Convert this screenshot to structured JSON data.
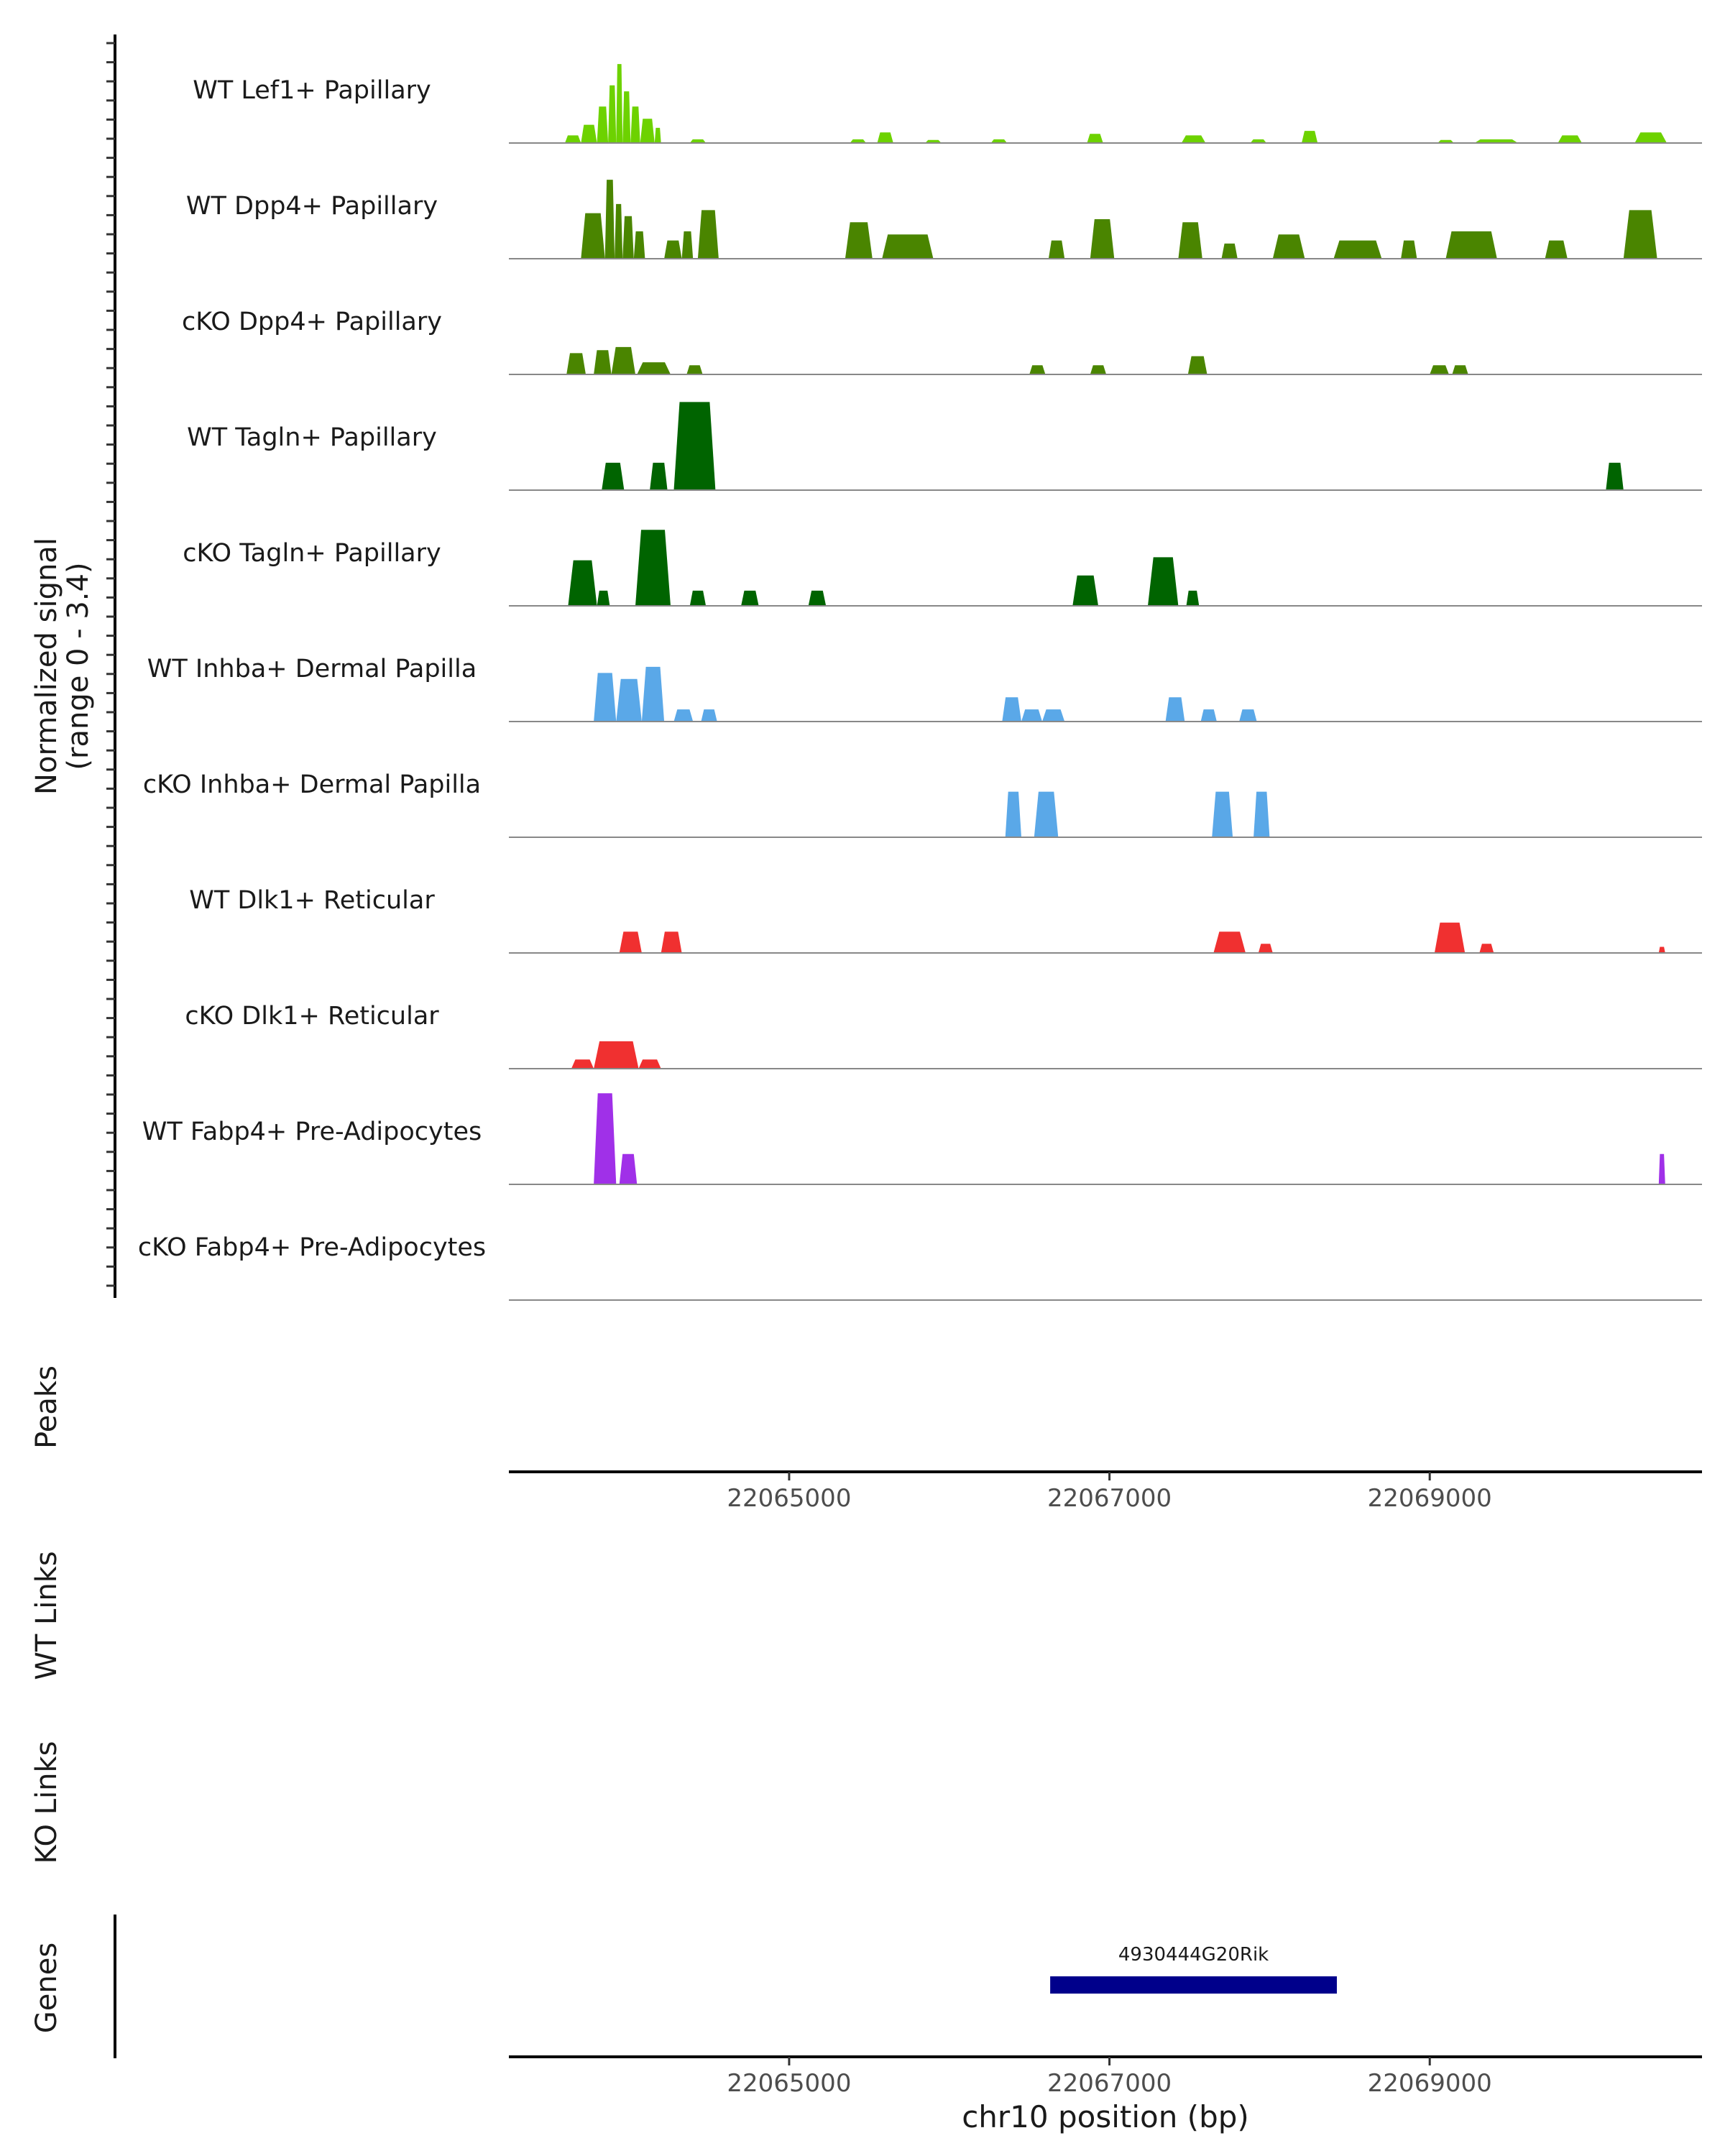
{
  "chart_data": {
    "type": "area",
    "title": "",
    "y_axis_label_line1": "Normalized signal",
    "y_axis_label_line2": "(range 0 - 3.4)",
    "ylim": [
      0,
      3.4
    ],
    "xlim": [
      22063250,
      22070700
    ],
    "x_ticks": [
      22065000,
      22067000,
      22069000
    ],
    "x_tick_labels": [
      "22065000",
      "22067000",
      "22069000"
    ],
    "xlabel": "chr10 position (bp)",
    "tracks": [
      {
        "name": "WT Lef1+ Papillary",
        "color": "#6DD200",
        "peaks": [
          [
            22063600,
            22063700,
            0.25
          ],
          [
            22063700,
            22063800,
            0.6
          ],
          [
            22063800,
            22063870,
            1.2
          ],
          [
            22063870,
            22063920,
            1.9
          ],
          [
            22063920,
            22063960,
            2.6
          ],
          [
            22063960,
            22064010,
            1.7
          ],
          [
            22064010,
            22064070,
            1.2
          ],
          [
            22064070,
            22064160,
            0.8
          ],
          [
            22064160,
            22064200,
            0.5
          ],
          [
            22064380,
            22064480,
            0.12
          ],
          [
            22065380,
            22065480,
            0.12
          ],
          [
            22065550,
            22065650,
            0.35
          ],
          [
            22065850,
            22065950,
            0.1
          ],
          [
            22066260,
            22066360,
            0.12
          ],
          [
            22066860,
            22066960,
            0.3
          ],
          [
            22067450,
            22067600,
            0.25
          ],
          [
            22067880,
            22067980,
            0.12
          ],
          [
            22068200,
            22068300,
            0.4
          ],
          [
            22069050,
            22069150,
            0.1
          ],
          [
            22069280,
            22069550,
            0.12
          ],
          [
            22069800,
            22069950,
            0.25
          ],
          [
            22070280,
            22070480,
            0.35
          ]
        ]
      },
      {
        "name": "WT Dpp4+ Papillary",
        "color": "#4A8500",
        "peaks": [
          [
            22063700,
            22063850,
            1.5
          ],
          [
            22063850,
            22063910,
            2.6
          ],
          [
            22063910,
            22063960,
            1.8
          ],
          [
            22063960,
            22064030,
            1.4
          ],
          [
            22064030,
            22064100,
            0.9
          ],
          [
            22064220,
            22064330,
            0.6
          ],
          [
            22064330,
            22064400,
            0.9
          ],
          [
            22064430,
            22064560,
            1.6
          ],
          [
            22065350,
            22065520,
            1.2
          ],
          [
            22065580,
            22065900,
            0.8
          ],
          [
            22066620,
            22066720,
            0.6
          ],
          [
            22066880,
            22067030,
            1.3
          ],
          [
            22067430,
            22067580,
            1.2
          ],
          [
            22067700,
            22067800,
            0.5
          ],
          [
            22068020,
            22068220,
            0.8
          ],
          [
            22068400,
            22068700,
            0.6
          ],
          [
            22068820,
            22068920,
            0.6
          ],
          [
            22069100,
            22069420,
            0.9
          ],
          [
            22069720,
            22069860,
            0.6
          ],
          [
            22070210,
            22070420,
            1.6
          ]
        ]
      },
      {
        "name": "cKO Dpp4+ Papillary",
        "color": "#4A8500",
        "peaks": [
          [
            22063610,
            22063730,
            0.7
          ],
          [
            22063780,
            22063890,
            0.8
          ],
          [
            22063890,
            22064040,
            0.9
          ],
          [
            22064050,
            22064260,
            0.4
          ],
          [
            22064360,
            22064460,
            0.3
          ],
          [
            22066500,
            22066600,
            0.3
          ],
          [
            22066880,
            22066980,
            0.3
          ],
          [
            22067490,
            22067610,
            0.6
          ],
          [
            22069000,
            22069120,
            0.3
          ],
          [
            22069140,
            22069240,
            0.3
          ]
        ]
      },
      {
        "name": "WT Tagln+ Papillary",
        "color": "#006400",
        "peaks": [
          [
            22063830,
            22063970,
            0.9
          ],
          [
            22064130,
            22064240,
            0.9
          ],
          [
            22064280,
            22064540,
            2.9
          ],
          [
            22070100,
            22070210,
            0.9
          ]
        ]
      },
      {
        "name": "cKO Tagln+ Papillary",
        "color": "#006400",
        "peaks": [
          [
            22063620,
            22063800,
            1.5
          ],
          [
            22063800,
            22063880,
            0.5
          ],
          [
            22064040,
            22064260,
            2.5
          ],
          [
            22064380,
            22064480,
            0.5
          ],
          [
            22064700,
            22064810,
            0.5
          ],
          [
            22065120,
            22065230,
            0.5
          ],
          [
            22066770,
            22066930,
            1.0
          ],
          [
            22067240,
            22067430,
            1.6
          ],
          [
            22067480,
            22067560,
            0.5
          ]
        ]
      },
      {
        "name": "WT Inhba+ Dermal Papilla",
        "color": "#5AA8E8",
        "peaks": [
          [
            22063780,
            22063920,
            1.6
          ],
          [
            22063920,
            22064080,
            1.4
          ],
          [
            22064080,
            22064220,
            1.8
          ],
          [
            22064280,
            22064400,
            0.4
          ],
          [
            22064450,
            22064550,
            0.4
          ],
          [
            22066330,
            22066450,
            0.8
          ],
          [
            22066450,
            22066580,
            0.4
          ],
          [
            22066580,
            22066720,
            0.4
          ],
          [
            22067350,
            22067470,
            0.8
          ],
          [
            22067570,
            22067670,
            0.4
          ],
          [
            22067810,
            22067920,
            0.4
          ]
        ]
      },
      {
        "name": "cKO Inhba+ Dermal Papilla",
        "color": "#5AA8E8",
        "peaks": [
          [
            22066350,
            22066450,
            1.5
          ],
          [
            22066530,
            22066680,
            1.5
          ],
          [
            22067640,
            22067770,
            1.5
          ],
          [
            22067900,
            22068000,
            1.5
          ]
        ]
      },
      {
        "name": "WT Dlk1+ Reticular",
        "color": "#F03030",
        "peaks": [
          [
            22063940,
            22064080,
            0.7
          ],
          [
            22064200,
            22064330,
            0.7
          ],
          [
            22067650,
            22067850,
            0.7
          ],
          [
            22067930,
            22068020,
            0.3
          ],
          [
            22069030,
            22069220,
            1.0
          ],
          [
            22069310,
            22069400,
            0.3
          ],
          [
            22070430,
            22070470,
            0.2
          ]
        ]
      },
      {
        "name": "cKO Dlk1+ Reticular",
        "color": "#F03030",
        "peaks": [
          [
            22063640,
            22063780,
            0.3
          ],
          [
            22063780,
            22064060,
            0.9
          ],
          [
            22064060,
            22064200,
            0.3
          ]
        ]
      },
      {
        "name": "WT Fabp4+ Pre-Adipocytes",
        "color": "#A030E8",
        "peaks": [
          [
            22063780,
            22063920,
            3.0
          ],
          [
            22063940,
            22064050,
            1.0
          ],
          [
            22070430,
            22070470,
            1.0
          ]
        ]
      },
      {
        "name": "cKO Fabp4+ Pre-Adipocytes",
        "color": "#A030E8",
        "peaks": []
      }
    ],
    "other_panels": [
      "Peaks",
      "WT Links",
      "KO Links",
      "Genes"
    ],
    "genes": [
      {
        "name": "4930444G20Rik",
        "start": 22066630,
        "end": 22068420,
        "color": "#00008B"
      }
    ]
  }
}
